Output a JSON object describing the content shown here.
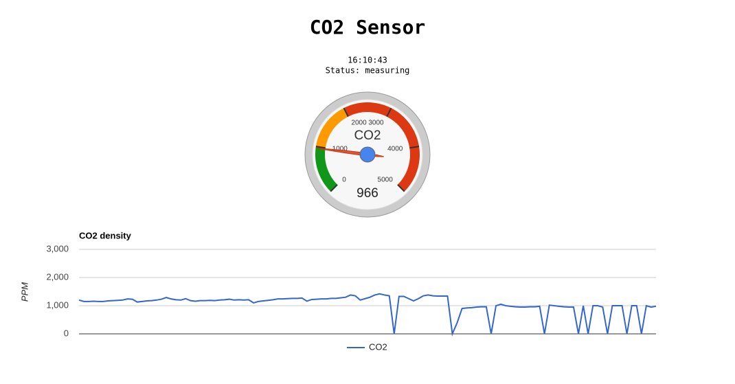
{
  "page": {
    "title": "CO2 Sensor",
    "time": "16:10:43",
    "status": "Status: measuring"
  },
  "chart_data": [
    {
      "type": "gauge",
      "label": "CO2",
      "value": 966,
      "min": 0,
      "max": 5000,
      "ticks": [
        0,
        1000,
        2000,
        3000,
        4000,
        5000
      ],
      "bands": [
        {
          "from": 0,
          "to": 1000,
          "color": "#109618"
        },
        {
          "from": 1000,
          "to": 2000,
          "color": "#ff9900"
        },
        {
          "from": 2000,
          "to": 5000,
          "color": "#dc3912"
        }
      ]
    },
    {
      "type": "line",
      "title": "CO2 density",
      "y_label": "PPM",
      "ylim": [
        0,
        3000
      ],
      "yticks": [
        0,
        {
          "value": 1000,
          "label": "1,000"
        },
        {
          "value": 2000,
          "label": "2,000"
        },
        {
          "value": 3000,
          "label": "3,000"
        }
      ],
      "grid": true,
      "legend": "bottom",
      "categories": [
        null,
        null,
        null,
        null,
        null,
        null,
        null,
        null,
        null,
        null,
        null,
        null,
        null,
        null,
        null,
        null,
        null,
        null,
        null,
        null,
        null,
        null,
        null,
        null,
        null,
        null,
        null,
        null,
        null,
        null,
        null,
        null,
        null,
        null,
        null,
        null,
        null,
        null,
        null,
        null,
        null,
        null,
        null,
        null,
        null,
        null,
        null,
        null,
        null,
        null,
        null,
        null,
        null,
        null,
        null,
        null,
        null,
        null,
        null,
        null,
        null,
        null,
        null,
        null,
        null,
        null,
        null,
        null,
        null,
        null,
        null,
        null,
        null,
        null,
        null,
        null,
        null,
        null,
        null,
        null,
        null,
        null,
        null,
        null,
        null,
        null,
        null,
        null,
        null,
        null,
        null,
        null,
        null,
        null,
        null,
        null,
        null,
        null,
        null,
        null,
        null,
        null,
        null,
        null,
        null,
        null,
        null,
        null,
        null,
        null,
        null,
        null,
        null,
        null,
        null,
        null,
        null,
        null,
        null,
        null
      ],
      "series": [
        {
          "name": "CO2",
          "color": "#3366cc",
          "values": [
            1200,
            1150,
            1150,
            1160,
            1150,
            1150,
            1170,
            1180,
            1190,
            1200,
            1240,
            1230,
            1130,
            1150,
            1170,
            1180,
            1200,
            1230,
            1290,
            1240,
            1210,
            1200,
            1250,
            1180,
            1160,
            1180,
            1180,
            1190,
            1180,
            1200,
            1210,
            1230,
            1200,
            1210,
            1200,
            1210,
            1100,
            1150,
            1170,
            1190,
            1210,
            1240,
            1240,
            1250,
            1260,
            1260,
            1270,
            1160,
            1220,
            1230,
            1240,
            1240,
            1260,
            1260,
            1280,
            1300,
            1380,
            1350,
            1200,
            1250,
            1300,
            1380,
            1420,
            1380,
            1350,
            0,
            1330,
            1330,
            1250,
            1170,
            1250,
            1350,
            1380,
            1350,
            1340,
            1340,
            1340,
            0,
            400,
            900,
            920,
            930,
            950,
            960,
            960,
            0,
            1000,
            1050,
            1000,
            980,
            960,
            950,
            950,
            960,
            960,
            980,
            0,
            1020,
            1000,
            980,
            960,
            950,
            950,
            0,
            1000,
            0,
            1000,
            1000,
            950,
            0,
            1000,
            1000,
            1000,
            0,
            1000,
            1000,
            0,
            1000,
            950,
            980
          ]
        }
      ]
    }
  ]
}
